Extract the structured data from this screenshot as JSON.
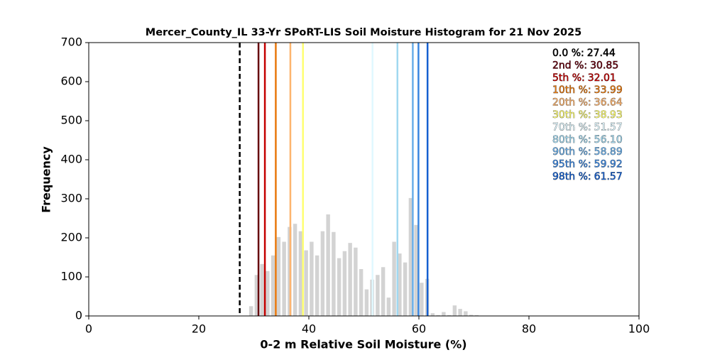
{
  "chart_data": {
    "type": "histogram",
    "title": "Mercer_County_IL 33-Yr SPoRT-LIS Soil Moisture Histogram for 21 Nov 2025",
    "x_label": "0-2 m Relative Soil Moisture (%)",
    "y_label": "Frequency",
    "bins": [
      29,
      30,
      31,
      32,
      33,
      34,
      35,
      36,
      37,
      38,
      39,
      40,
      41,
      42,
      43,
      44,
      45,
      46,
      47,
      48,
      49,
      50,
      51,
      52,
      53,
      54,
      55,
      56,
      57,
      58,
      59,
      60,
      61,
      62,
      63,
      64,
      65,
      66,
      67,
      68,
      69,
      70,
      71
    ],
    "values": [
      25,
      105,
      133,
      115,
      155,
      202,
      190,
      228,
      236,
      217,
      168,
      190,
      155,
      217,
      260,
      215,
      148,
      166,
      187,
      175,
      120,
      68,
      93,
      105,
      125,
      47,
      190,
      160,
      137,
      302,
      233,
      85,
      95,
      7,
      2,
      10,
      2,
      27,
      18,
      12,
      3,
      2
    ],
    "color": "#d3d3d3",
    "xlim": [
      0,
      100
    ],
    "xticks": [
      0,
      20,
      40,
      60,
      80,
      100
    ],
    "ylim": [
      0,
      700
    ],
    "yticks": [
      0,
      100,
      200,
      300,
      400,
      500,
      600,
      700
    ],
    "grid": false,
    "percentiles": {
      "names": [
        "0.0 %:",
        "2nd %:",
        "5th %:",
        "10th %:",
        "20th %:",
        "30th %:",
        "70th %:",
        "80th %:",
        "90th %:",
        "95th %:",
        "98th %:"
      ],
      "values": [
        27.44,
        30.85,
        32.01,
        33.99,
        36.64,
        38.93,
        51.57,
        56.1,
        58.89,
        59.92,
        61.57
      ],
      "value_labels": [
        "27.44",
        "30.85",
        "32.01",
        "33.99",
        "36.64",
        "38.93",
        "51.57",
        "56.10",
        "58.89",
        "59.92",
        "61.57"
      ],
      "colors": [
        "#000000",
        "#67000d",
        "#c40000",
        "#e8780c",
        "#fdb46e",
        "#ffff70",
        "#e0f8ff",
        "#a0d8f0",
        "#6aaee8",
        "#3a86e0",
        "#1560d0"
      ],
      "dashed": [
        true,
        false,
        false,
        false,
        false,
        false,
        false,
        false,
        false,
        false,
        false
      ]
    }
  }
}
